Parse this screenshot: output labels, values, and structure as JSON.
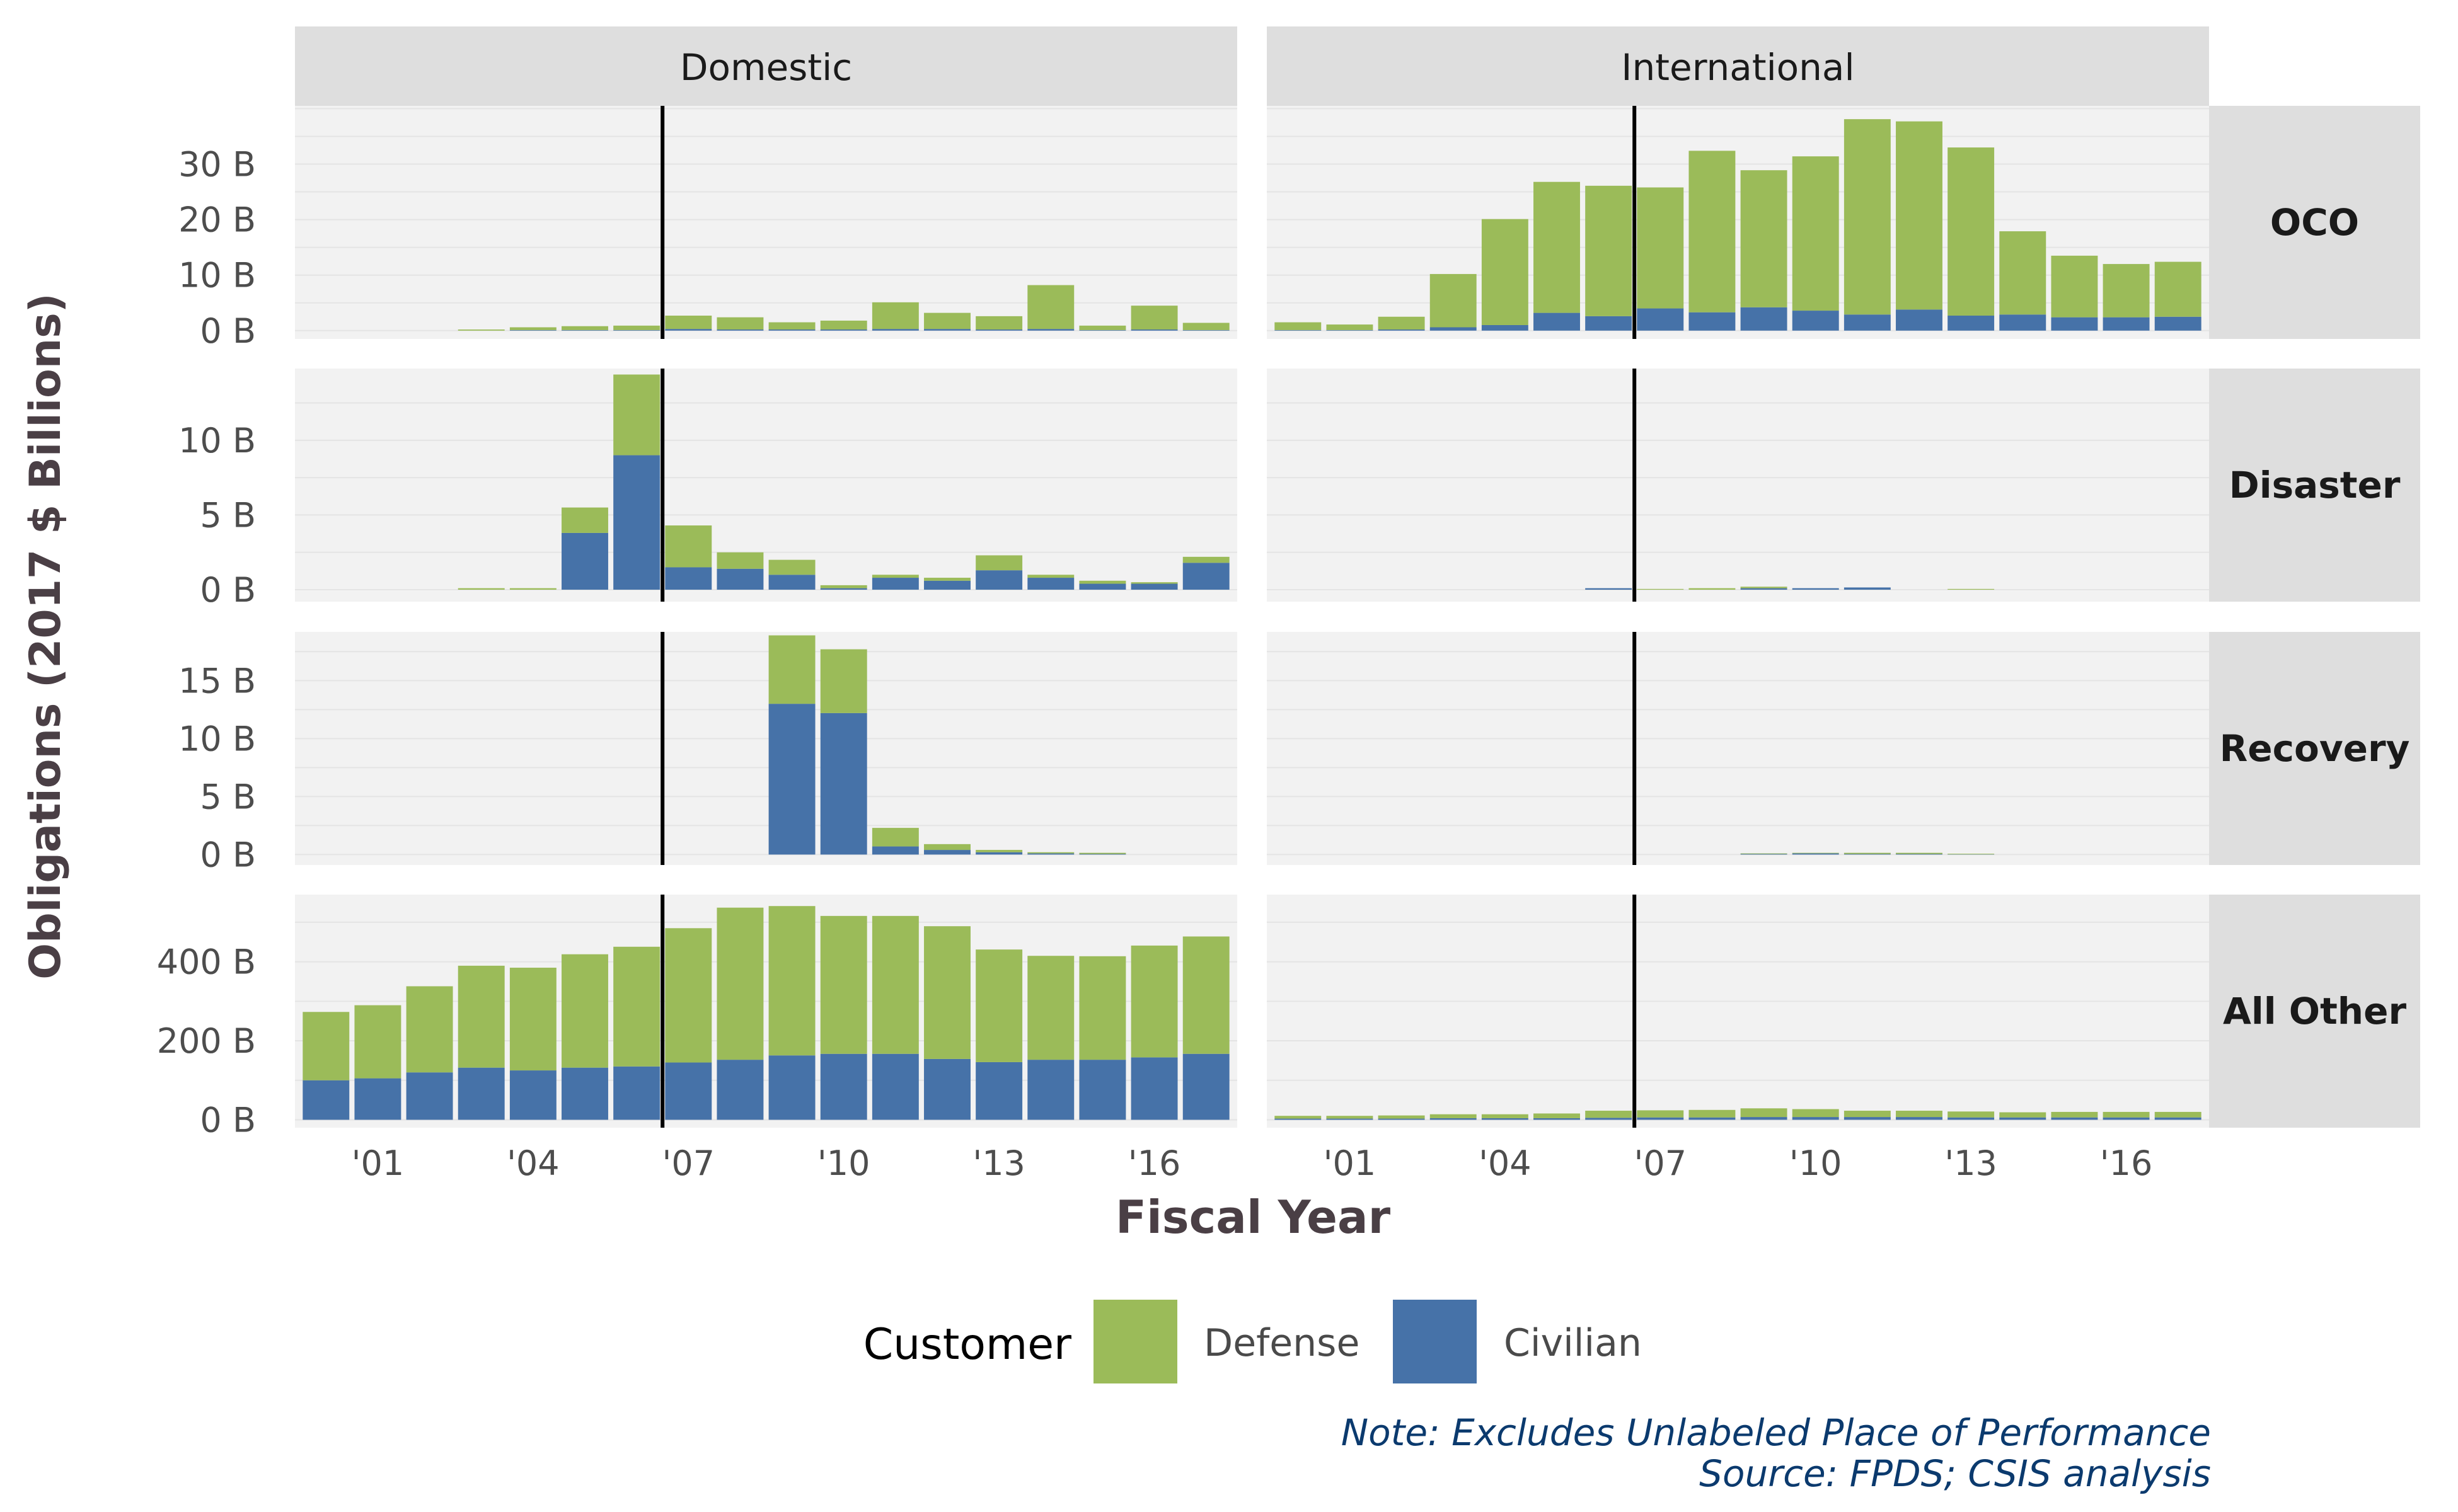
{
  "chart_data": {
    "type": "bar",
    "stacked": true,
    "facet_columns": [
      "Domestic",
      "International"
    ],
    "facet_rows": [
      "OCO",
      "Disaster",
      "Recovery",
      "All Other"
    ],
    "years": [
      2000,
      2001,
      2002,
      2003,
      2004,
      2005,
      2006,
      2007,
      2008,
      2009,
      2010,
      2011,
      2012,
      2013,
      2014,
      2015,
      2016,
      2017
    ],
    "x_ticks": [
      {
        "year": 2001,
        "label": "'01"
      },
      {
        "year": 2004,
        "label": "'04"
      },
      {
        "year": 2007,
        "label": "'07"
      },
      {
        "year": 2010,
        "label": "'10"
      },
      {
        "year": 2013,
        "label": "'13"
      },
      {
        "year": 2016,
        "label": "'16"
      }
    ],
    "vertical_line_year": 2006.5,
    "xlabel": "Fiscal Year",
    "ylabel": "Obligations (2017 $ Billions)",
    "legend": {
      "title": "Customer",
      "position": "bottom",
      "items": [
        {
          "name": "Defense",
          "color": "#9bbb59"
        },
        {
          "name": "Civilian",
          "color": "#4672a8"
        }
      ]
    },
    "rows": [
      {
        "name": "OCO",
        "ylim": [
          -1.5,
          40.5
        ],
        "y_ticks": [
          {
            "v": 0,
            "label": "0 B"
          },
          {
            "v": 10,
            "label": "10 B"
          },
          {
            "v": 20,
            "label": "20 B"
          },
          {
            "v": 30,
            "label": "30 B"
          }
        ],
        "panels": {
          "Domestic": {
            "Civilian": [
              0,
              0,
              0,
              0,
              0.1,
              0.1,
              0.1,
              0.3,
              0.2,
              0.2,
              0.2,
              0.3,
              0.3,
              0.2,
              0.3,
              0.1,
              0.2,
              0.1
            ],
            "Defense": [
              0,
              0,
              0,
              0.2,
              0.5,
              0.7,
              0.8,
              2.4,
              2.2,
              1.3,
              1.6,
              4.8,
              2.9,
              2.4,
              7.9,
              0.8,
              4.3,
              1.3
            ]
          },
          "International": {
            "Civilian": [
              0.1,
              0.1,
              0.2,
              0.6,
              1,
              3.2,
              2.6,
              4,
              3.3,
              4.2,
              3.6,
              2.9,
              3.8,
              2.7,
              2.9,
              2.4,
              2.4,
              2.5
            ],
            "Defense": [
              1.4,
              1,
              2.3,
              9.6,
              19.1,
              23.6,
              23.5,
              21.8,
              29.1,
              24.7,
              27.8,
              35.2,
              33.9,
              30.3,
              15,
              11.1,
              9.6,
              9.9
            ]
          }
        }
      },
      {
        "name": "Disaster",
        "ylim": [
          -0.8,
          14.8
        ],
        "y_ticks": [
          {
            "v": 0,
            "label": "0 B"
          },
          {
            "v": 5,
            "label": "5 B"
          },
          {
            "v": 10,
            "label": "10 B"
          }
        ],
        "panels": {
          "Domestic": {
            "Civilian": [
              0,
              0,
              0,
              0,
              0,
              3.8,
              9,
              1.5,
              1.4,
              1,
              0.1,
              0.8,
              0.6,
              1.3,
              0.8,
              0.4,
              0.4,
              1.8
            ],
            "Defense": [
              0,
              0,
              0,
              0.1,
              0.1,
              1.7,
              5.4,
              2.8,
              1.1,
              1,
              0.2,
              0.2,
              0.2,
              1,
              0.2,
              0.2,
              0.1,
              0.4
            ]
          },
          "International": {
            "Civilian": [
              0,
              0,
              0,
              0,
              0,
              0,
              0.1,
              0,
              0,
              0.1,
              0.1,
              0.15,
              0,
              0,
              0,
              0,
              0,
              0
            ],
            "Defense": [
              0,
              0,
              0,
              0,
              0,
              0,
              0,
              0.05,
              0.1,
              0.1,
              0,
              0,
              0,
              0.05,
              0,
              0,
              0,
              0
            ]
          }
        }
      },
      {
        "name": "Recovery",
        "ylim": [
          -0.9,
          19.2
        ],
        "y_ticks": [
          {
            "v": 0,
            "label": "0 B"
          },
          {
            "v": 5,
            "label": "5 B"
          },
          {
            "v": 10,
            "label": "10 B"
          },
          {
            "v": 15,
            "label": "15 B"
          }
        ],
        "panels": {
          "Domestic": {
            "Civilian": [
              0,
              0,
              0,
              0,
              0,
              0,
              0,
              0,
              0,
              13,
              12.2,
              0.7,
              0.4,
              0.2,
              0.1,
              0.05,
              0,
              0
            ],
            "Defense": [
              0,
              0,
              0,
              0,
              0,
              0,
              0,
              0,
              0,
              5.9,
              5.5,
              1.6,
              0.5,
              0.2,
              0.1,
              0.1,
              0,
              0
            ]
          },
          "International": {
            "Civilian": [
              0,
              0,
              0,
              0,
              0,
              0,
              0,
              0,
              0,
              0.05,
              0.1,
              0.05,
              0.05,
              0.02,
              0,
              0,
              0,
              0
            ],
            "Defense": [
              0,
              0,
              0,
              0,
              0,
              0,
              0,
              0,
              0,
              0.05,
              0.05,
              0.1,
              0.1,
              0.05,
              0,
              0,
              0,
              0
            ]
          }
        }
      },
      {
        "name": "All Other",
        "ylim": [
          -20,
          570
        ],
        "y_ticks": [
          {
            "v": 0,
            "label": "0 B"
          },
          {
            "v": 200,
            "label": "200 B"
          },
          {
            "v": 400,
            "label": "400 B"
          }
        ],
        "panels": {
          "Domestic": {
            "Civilian": [
              100,
              105,
              120,
              132,
              125,
              132,
              135,
              145,
              152,
              163,
              167,
              167,
              154,
              146,
              152,
              152,
              158,
              167
            ],
            "Defense": [
              173,
              185,
              218,
              258,
              260,
              287,
              303,
              340,
              385,
              378,
              349,
              349,
              336,
              285,
              263,
              262,
              283,
              297
            ]
          },
          "International": {
            "Civilian": [
              3,
              3,
              3,
              4,
              4,
              4,
              5,
              6,
              6,
              7,
              7,
              7,
              7,
              6,
              6,
              6,
              6,
              6
            ],
            "Defense": [
              7,
              7,
              8,
              10,
              10,
              12,
              18,
              18,
              19,
              22,
              20,
              16,
              16,
              15,
              13,
              14,
              14,
              14
            ]
          }
        }
      }
    ]
  },
  "notes": {
    "line1": "Note: Excludes Unlabeled Place of Performance",
    "line2": "Source: FPDS; CSIS analysis"
  }
}
